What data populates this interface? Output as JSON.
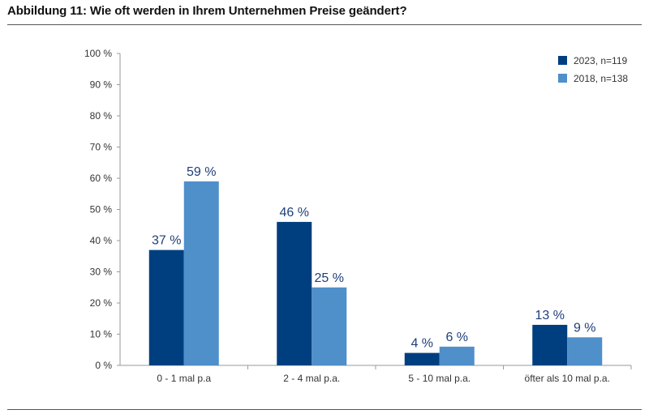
{
  "figure": {
    "title": "Abbildung 11: Wie oft werden in Ihrem Unternehmen Preise geändert?"
  },
  "colors": {
    "series_2023": "#003f7f",
    "series_2018": "#4f8fca"
  },
  "chart_data": {
    "type": "bar",
    "categories": [
      "0 - 1 mal p.a",
      "2 - 4 mal p.a.",
      "5 - 10 mal p.a.",
      "öfter als 10 mal p.a."
    ],
    "series": [
      {
        "name": "2023, n=119",
        "values": [
          37,
          46,
          4,
          13
        ],
        "labels": [
          "37 %",
          "46 %",
          "4 %",
          "13 %"
        ]
      },
      {
        "name": "2018, n=138",
        "values": [
          59,
          25,
          6,
          9
        ],
        "labels": [
          "59 %",
          "25 %",
          "6 %",
          "9 %"
        ]
      }
    ],
    "ylim": [
      0,
      100
    ],
    "yticks": [
      0,
      10,
      20,
      30,
      40,
      50,
      60,
      70,
      80,
      90,
      100
    ],
    "ytick_labels": [
      "0 %",
      "10 %",
      "20 %",
      "30 %",
      "40 %",
      "50 %",
      "60 %",
      "70 %",
      "80 %",
      "90 %",
      "100 %"
    ],
    "grid": false,
    "legend": "top-right"
  }
}
